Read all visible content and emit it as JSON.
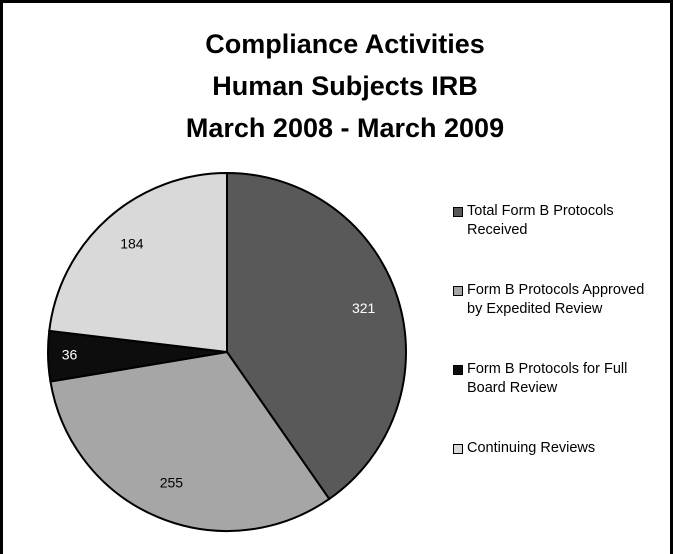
{
  "chart_data": {
    "type": "pie",
    "title": [
      "Compliance Activities",
      "Human Subjects IRB",
      "March 2008 - March 2009"
    ],
    "categories": [
      "Total Form B Protocols Received",
      "Form B Protocols Approved by Expedited Review",
      "Form B Protocols for Full Board Review",
      "Continuing Reviews"
    ],
    "values": [
      321,
      255,
      36,
      184
    ],
    "colors": [
      "#595959",
      "#a6a6a6",
      "#0d0d0d",
      "#d9d9d9"
    ],
    "label_colors": [
      "#ffffff",
      "#000000",
      "#ffffff",
      "#000000"
    ],
    "legend": "right"
  }
}
